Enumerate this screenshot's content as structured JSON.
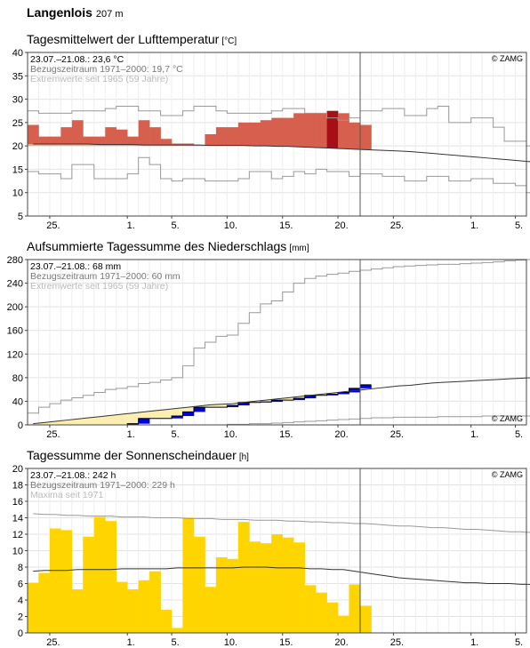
{
  "header": {
    "station": "Langenlois",
    "elevation": "207 m"
  },
  "chart_data": [
    {
      "type": "area",
      "title": "Tagesmittelwert der Lufttemperatur",
      "unit": "[°C]",
      "info_lines": [
        "23.07.–21.08.: 23,6 °C",
        "Bezugszeitraum 1971–2000: 19,7 °C",
        "Extremwerte seit 1965 (59 Jahre)"
      ],
      "credit": "© ZAMG",
      "ylim": [
        5,
        40
      ],
      "yticks": [
        5,
        10,
        15,
        20,
        25,
        30,
        35,
        40
      ],
      "xlim": [
        0,
        45
      ],
      "xticks": [
        {
          "x": 2,
          "label": "25."
        },
        {
          "x": 9,
          "label": "1."
        },
        {
          "x": 13,
          "label": "5."
        },
        {
          "x": 18,
          "label": "10."
        },
        {
          "x": 23,
          "label": "15."
        },
        {
          "x": 28,
          "label": "20."
        },
        {
          "x": 33,
          "label": "25."
        },
        {
          "x": 40,
          "label": "1."
        },
        {
          "x": 44,
          "label": "5."
        }
      ],
      "current_day": 30,
      "observed": [
        24.5,
        22,
        22,
        24,
        25.5,
        22,
        22,
        24,
        23.5,
        22,
        25.5,
        24,
        21.5,
        20.5,
        20.5,
        20,
        22.5,
        24,
        24,
        25,
        25,
        25.5,
        26,
        26,
        27,
        27,
        27,
        27.5,
        27,
        25,
        24.5
      ],
      "climate_mean": [
        20.4,
        20.4,
        20.4,
        20.4,
        20.4,
        20.4,
        20.3,
        20.3,
        20.3,
        20.3,
        20.2,
        20.2,
        20.2,
        20.2,
        20.2,
        20.2,
        20.1,
        20.1,
        20.1,
        20.1,
        20.0,
        20.0,
        19.9,
        19.9,
        19.8,
        19.7,
        19.6,
        19.5,
        19.4,
        19.3,
        19.2,
        19.1,
        19.0,
        18.9,
        18.8,
        18.6,
        18.4,
        18.2,
        18.0,
        17.8,
        17.6,
        17.4,
        17.2,
        17.0,
        16.8,
        16.6
      ],
      "extreme_max": [
        27.5,
        27,
        27,
        27,
        27.5,
        27.5,
        27.5,
        28,
        28.5,
        28.5,
        27.5,
        27.5,
        26.5,
        26.5,
        27.5,
        28.5,
        28.5,
        27.5,
        27,
        27,
        27,
        27,
        27.5,
        28,
        28,
        27,
        27,
        26,
        25.5,
        26,
        27.5,
        27.5,
        28,
        28,
        26.5,
        26.5,
        28,
        28.5,
        25,
        25,
        26,
        26,
        24,
        21,
        21,
        20
      ],
      "extreme_min": [
        14.5,
        14,
        14,
        13,
        16,
        16,
        13,
        13,
        13,
        14,
        17.5,
        16,
        13,
        12.5,
        13,
        13,
        12.5,
        12.5,
        12.5,
        13,
        14.5,
        14.5,
        13,
        13.5,
        14.5,
        14,
        15,
        14.5,
        14.5,
        13.5,
        14,
        14,
        13.5,
        13.5,
        12.5,
        12.5,
        13.5,
        13.5,
        12.5,
        12.5,
        13,
        13,
        12,
        12,
        11.5,
        10
      ]
    },
    {
      "type": "line",
      "title": "Aufsummierte Tagessumme des Niederschlags",
      "unit": "[mm]",
      "info_lines": [
        "23.07.–21.08.: 68 mm",
        "Bezugszeitraum 1971–2000: 60 mm",
        "Extremwerte seit 1965 (59 Jahre)"
      ],
      "credit": "© ZAMG",
      "ylim": [
        0,
        280
      ],
      "yticks": [
        0,
        40,
        80,
        120,
        160,
        200,
        240,
        280
      ],
      "xlim": [
        0,
        45
      ],
      "xticks": [
        {
          "x": 2,
          "label": "25."
        },
        {
          "x": 9,
          "label": "1."
        },
        {
          "x": 13,
          "label": "5."
        },
        {
          "x": 18,
          "label": "10."
        },
        {
          "x": 23,
          "label": "15."
        },
        {
          "x": 28,
          "label": "20."
        },
        {
          "x": 33,
          "label": "25."
        },
        {
          "x": 40,
          "label": "1."
        },
        {
          "x": 44,
          "label": "5."
        }
      ],
      "current_day": 30,
      "observed_cumulative": [
        0,
        0,
        0,
        0,
        0,
        0,
        0,
        0,
        0,
        2,
        11,
        11,
        11,
        15,
        22,
        30,
        30,
        30,
        33,
        38,
        38,
        39,
        42,
        42,
        45,
        50,
        50,
        52,
        55,
        62,
        68
      ],
      "climate_cumulative": [
        2,
        4,
        6,
        8,
        10,
        12,
        14,
        16,
        18,
        20,
        22,
        24,
        26,
        28,
        30,
        32,
        34,
        35,
        36,
        38,
        40,
        42,
        44,
        46,
        48,
        50,
        52,
        54,
        56,
        58,
        60,
        62,
        64,
        66,
        67,
        69,
        71,
        72,
        73,
        74,
        75,
        76,
        77,
        78,
        79,
        80
      ],
      "extreme_max_cumulative": [
        20,
        30,
        36,
        42,
        46,
        50,
        55,
        60,
        62,
        65,
        70,
        72,
        76,
        80,
        100,
        130,
        140,
        150,
        152,
        172,
        190,
        205,
        210,
        225,
        240,
        248,
        252,
        255,
        257,
        260,
        262,
        264,
        266,
        268,
        269,
        270,
        271,
        272,
        272,
        273,
        274,
        275,
        276,
        278,
        279,
        280
      ],
      "extreme_min_cumulative": [
        0,
        0,
        0,
        0,
        0,
        0,
        0,
        0,
        0,
        0,
        0,
        0,
        0,
        0,
        0,
        0,
        0,
        0,
        1,
        1,
        2,
        2,
        3,
        4,
        5,
        6,
        7,
        8,
        9,
        10,
        11,
        12,
        12,
        13,
        13,
        13,
        13,
        14,
        14,
        14,
        14,
        15,
        15,
        15,
        15,
        15
      ]
    },
    {
      "type": "bar",
      "title": "Tagessumme der Sonnenscheindauer",
      "unit": "[h]",
      "info_lines": [
        "23.07.–21.08.: 242 h",
        "Bezugszeitraum 1971–2000: 229 h",
        "Maxima seit 1971"
      ],
      "credit": "© ZAMG",
      "ylim": [
        0,
        20
      ],
      "yticks": [
        0,
        2,
        4,
        6,
        8,
        10,
        12,
        14,
        16,
        18,
        20
      ],
      "xlim": [
        0,
        45
      ],
      "xticks": [
        {
          "x": 2,
          "label": "25."
        },
        {
          "x": 9,
          "label": "1."
        },
        {
          "x": 13,
          "label": "5."
        },
        {
          "x": 18,
          "label": "10."
        },
        {
          "x": 23,
          "label": "15."
        },
        {
          "x": 28,
          "label": "20."
        },
        {
          "x": 33,
          "label": "25."
        },
        {
          "x": 40,
          "label": "1."
        },
        {
          "x": 44,
          "label": "5."
        }
      ],
      "current_day": 30,
      "values": [
        6.1,
        7.3,
        12.7,
        12.5,
        5.3,
        11.7,
        14.1,
        13.6,
        6.2,
        5.3,
        6.4,
        7.5,
        2.8,
        0.6,
        14.0,
        11.7,
        5.6,
        9.2,
        9.0,
        13.5,
        11.1,
        10.9,
        12.0,
        11.6,
        11.0,
        5.8,
        4.9,
        3.7,
        2.1,
        5.9,
        3.3
      ],
      "climate_mean": [
        7.5,
        7.6,
        7.6,
        7.6,
        7.7,
        7.7,
        7.7,
        7.7,
        7.8,
        7.8,
        7.8,
        7.8,
        7.8,
        7.9,
        7.9,
        7.9,
        7.9,
        7.9,
        7.9,
        8.0,
        8.0,
        8.0,
        7.9,
        7.9,
        7.9,
        7.8,
        7.8,
        7.7,
        7.7,
        7.5,
        7.3,
        7.1,
        6.9,
        6.7,
        6.6,
        6.5,
        6.4,
        6.3,
        6.2,
        6.1,
        6.1,
        6.0,
        6.0,
        6.0,
        5.9,
        5.9
      ],
      "maxima": [
        14.5,
        14.4,
        14.4,
        14.3,
        14.3,
        14.2,
        14.2,
        14.2,
        14.1,
        14.1,
        14.1,
        14.0,
        14.0,
        14.0,
        13.9,
        13.9,
        13.9,
        13.8,
        13.8,
        13.8,
        13.7,
        13.7,
        13.7,
        13.6,
        13.6,
        13.5,
        13.5,
        13.4,
        13.4,
        13.3,
        13.3,
        13.2,
        13.1,
        13.0,
        13.0,
        12.9,
        12.8,
        12.8,
        12.7,
        12.6,
        12.6,
        12.5,
        12.4,
        12.3,
        12.3,
        12.2
      ]
    }
  ]
}
